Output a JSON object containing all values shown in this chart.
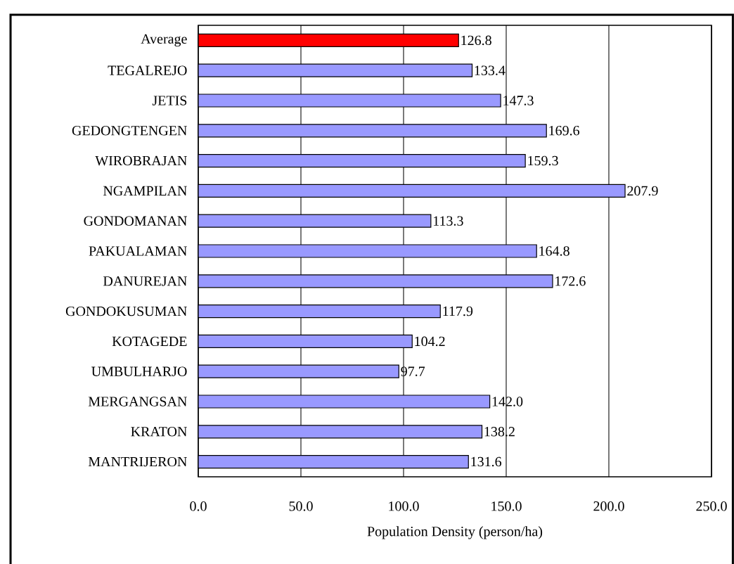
{
  "chart_data": {
    "type": "bar",
    "orientation": "horizontal",
    "xlabel": "Population Density (person/ha)",
    "categories": [
      "Average",
      "TEGALREJO",
      "JETIS",
      "GEDONGTENGEN",
      "WIROBRAJAN",
      "NGAMPILAN",
      "GONDOMANAN",
      "PAKUALAMAN",
      "DANUREJAN",
      "GONDOKUSUMAN",
      "KOTAGEDE",
      "UMBULHARJO",
      "MERGANGSAN",
      "KRATON",
      "MANTRIJERON"
    ],
    "values": [
      126.8,
      133.4,
      147.3,
      169.6,
      159.3,
      207.9,
      113.3,
      164.8,
      172.6,
      117.9,
      104.2,
      97.7,
      142.0,
      138.2,
      131.6
    ],
    "value_labels": [
      "126.8",
      "133.4",
      "147.3",
      "169.6",
      "159.3",
      "207.9",
      "113.3",
      "164.8",
      "172.6",
      "117.9",
      "104.2",
      "97.7",
      "142.0",
      "138.2",
      "131.6"
    ],
    "colors": [
      "#ff0000",
      "#9999ff",
      "#9999ff",
      "#9999ff",
      "#9999ff",
      "#9999ff",
      "#9999ff",
      "#9999ff",
      "#9999ff",
      "#9999ff",
      "#9999ff",
      "#9999ff",
      "#9999ff",
      "#9999ff",
      "#9999ff"
    ],
    "xlim": [
      0,
      250
    ],
    "xticks": [
      {
        "value": 0,
        "label": "0.0"
      },
      {
        "value": 50,
        "label": "50.0"
      },
      {
        "value": 100,
        "label": "100.0"
      },
      {
        "value": 150,
        "label": "150.0"
      },
      {
        "value": 200,
        "label": "200.0"
      },
      {
        "value": 250,
        "label": "250.0"
      }
    ],
    "grid": "x"
  }
}
